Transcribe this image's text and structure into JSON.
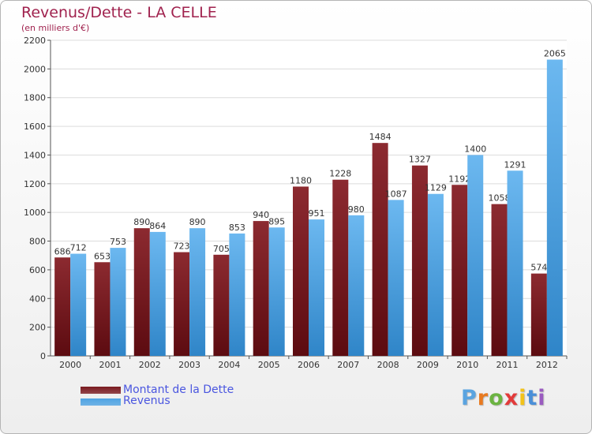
{
  "chart_data": {
    "type": "bar",
    "title": "Revenus/Dette - LA CELLE",
    "subtitle": "(en milliers d'€)",
    "categories": [
      "2000",
      "2001",
      "2002",
      "2003",
      "2004",
      "2005",
      "2006",
      "2007",
      "2008",
      "2009",
      "2010",
      "2011",
      "2012"
    ],
    "series": [
      {
        "name": "Montant de la Dette",
        "color": "#7a1a20",
        "values": [
          686,
          653,
          890,
          723,
          705,
          940,
          1180,
          1228,
          1484,
          1327,
          1192,
          1058,
          574
        ],
        "labels": [
          "686",
          "653",
          "890",
          "723",
          "705",
          "940",
          "1180",
          "1228",
          "1484",
          "1327",
          "1192",
          "1058",
          "574"
        ]
      },
      {
        "name": "Revenus",
        "color": "#4fa3e3",
        "values": [
          712,
          753,
          864,
          890,
          853,
          895,
          951,
          980,
          1087,
          1129,
          1400,
          1291,
          2065
        ],
        "labels": [
          "712",
          "753",
          "864",
          "890",
          "853",
          "895",
          "951",
          "980",
          "1087",
          "1129",
          "1400",
          "1291",
          "2065"
        ]
      }
    ],
    "y_ticks": [
      "0",
      "200",
      "400",
      "600",
      "800",
      "1000",
      "1200",
      "1400",
      "1600",
      "1800",
      "2000",
      "2200"
    ],
    "ylim": [
      0,
      2200
    ],
    "grid": true,
    "legend_position": "bottom-left"
  },
  "legend": {
    "items": [
      {
        "label": "Montant de la Dette",
        "color": "#7a1a20"
      },
      {
        "label": "Revenus",
        "color": "#4fa3e3"
      }
    ]
  },
  "brand": {
    "letters": [
      "P",
      "r",
      "o",
      "x",
      "i",
      "t",
      "i"
    ],
    "colors": [
      "#5aa4e0",
      "#e87a20",
      "#6bb341",
      "#e23a3a",
      "#f2c21a",
      "#4a8fd8",
      "#9a5bc0"
    ]
  }
}
